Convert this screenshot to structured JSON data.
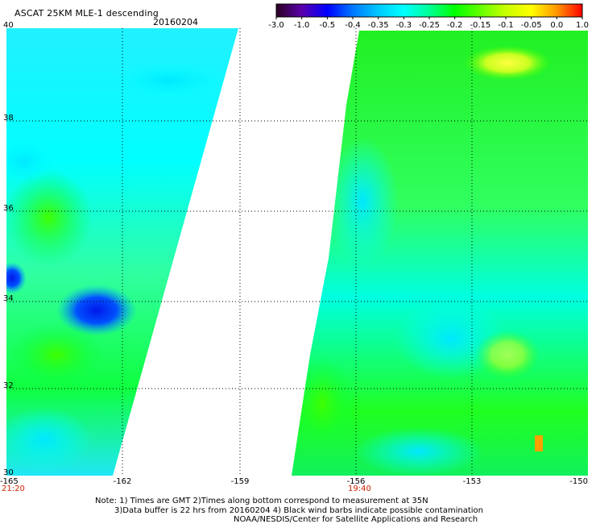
{
  "header": {
    "title": "ASCAT 25KM MLE-1 descending",
    "date": "20160204"
  },
  "colorbar": {
    "labels": [
      "-3.0",
      "-1.0",
      "-0.5",
      "-0.4",
      "-0.35",
      "-0.3",
      "-0.25",
      "-0.2",
      "-0.15",
      "-0.1",
      "-0.05",
      "0.0",
      "1.0"
    ],
    "colors": [
      "#2a0022",
      "#5a00aa",
      "#0000ff",
      "#0078ff",
      "#00c8ff",
      "#00ffff",
      "#00ff96",
      "#00ff00",
      "#64ff00",
      "#c8ff00",
      "#ffff00",
      "#ff9600",
      "#ff0000"
    ]
  },
  "map": {
    "lat_labels": [
      "40",
      "38",
      "36",
      "34",
      "32",
      "30"
    ],
    "lon_labels": [
      "-165",
      "-162",
      "-159",
      "-156",
      "-153",
      "-150"
    ],
    "lat_range": [
      30,
      40
    ],
    "lon_range": [
      -165,
      -150
    ]
  },
  "times": {
    "left": "21:20",
    "right": "19:40"
  },
  "notes": {
    "line1": "Note: 1) Times are GMT 2)Times along bottom correspond to measurement at 35N",
    "line2": "3)Data buffer is 22 hrs from 20160204 4) Black wind barbs indicate possible contamination",
    "line3": "NOAA/NESDIS/Center for Satellite Applications and Research"
  }
}
